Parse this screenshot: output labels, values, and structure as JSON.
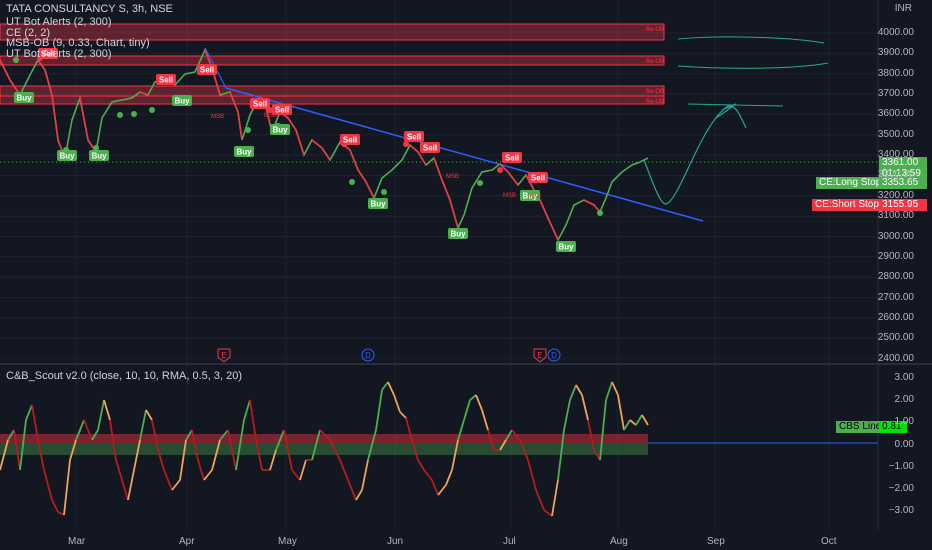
{
  "header": {
    "symbol_line": "TATA CONSULTANCY S, 3h, NSE",
    "currency": "INR",
    "indicators": [
      "UT Bot Alerts (2, 300)",
      "CE (2, 2)",
      "MSB-OB (9, 0.33, Chart, tiny)",
      "UT Bot Alerts (2, 300)"
    ]
  },
  "price_axis": {
    "labels": [
      "4000.00",
      "3900.00",
      "3800.00",
      "3700.00",
      "3600.00",
      "3500.00",
      "3400.00",
      "3300.00",
      "3200.00",
      "3100.00",
      "3000.00",
      "2900.00",
      "2800.00",
      "2700.00",
      "2600.00",
      "2500.00",
      "2400.00"
    ],
    "current_price": "3361.00",
    "countdown": "01:13:59",
    "long_stop_label": "CE:Long Stop",
    "long_stop_value": "3353.65",
    "short_stop_label": "CE:Short Stop",
    "short_stop_value": "3155.95"
  },
  "time_axis": {
    "labels": [
      "Mar",
      "Apr",
      "May",
      "Jun",
      "Jul",
      "Aug",
      "Sep",
      "Oct"
    ]
  },
  "chart_labels": {
    "ob_tag": "Be-OB",
    "msb": "MSB",
    "buy": "Buy",
    "sell": "Sell",
    "earnings": "E",
    "dividend": "D"
  },
  "oscillator": {
    "title": "C&B_Scout v2.0 (close, 10, 10, RMA, 0.5, 3, 20)",
    "axis_labels": [
      "3.00",
      "2.00",
      "1.00",
      "0.00",
      "−1.00",
      "−2.00",
      "−3.00"
    ],
    "cbs_label": "CBS Line",
    "cbs_value": "0.81"
  },
  "colors": {
    "background": "#131722",
    "bull": "#4caf50",
    "bear": "#f23645",
    "trendline": "#2962ff",
    "sketch": "#26a69a"
  }
}
